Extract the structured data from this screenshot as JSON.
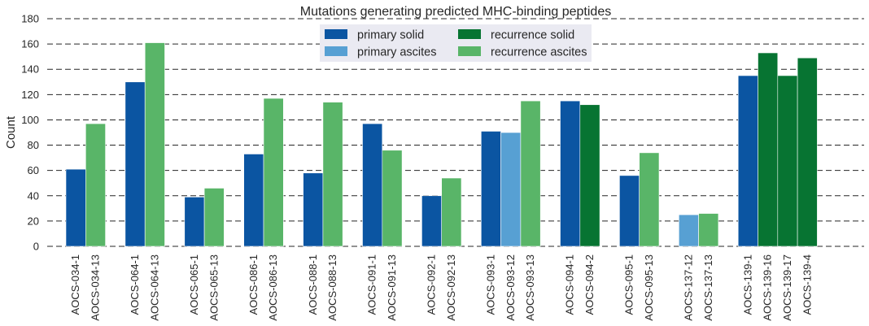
{
  "chart_data": {
    "type": "bar",
    "title": "Mutations generating predicted MHC-binding peptides",
    "xlabel": "",
    "ylabel": "Count",
    "ylim": [
      0,
      180
    ],
    "yticks": [
      0,
      20,
      40,
      60,
      80,
      100,
      120,
      140,
      160,
      180
    ],
    "grid": "horizontal dashed",
    "legend": {
      "placement": "top-center",
      "entries": [
        {
          "name": "primary solid",
          "color": "#0b55a2"
        },
        {
          "name": "primary ascites",
          "color": "#57a0d3"
        },
        {
          "name": "recurrence solid",
          "color": "#077432"
        },
        {
          "name": "recurrence ascites",
          "color": "#59b568"
        }
      ]
    },
    "groups": [
      {
        "bars": [
          {
            "label": "AOCS-034-1",
            "value": 61,
            "category": "primary solid"
          },
          {
            "label": "AOCS-034-13",
            "value": 97,
            "category": "recurrence ascites"
          }
        ]
      },
      {
        "bars": [
          {
            "label": "AOCS-064-1",
            "value": 130,
            "category": "primary solid"
          },
          {
            "label": "AOCS-064-13",
            "value": 161,
            "category": "recurrence ascites"
          }
        ]
      },
      {
        "bars": [
          {
            "label": "AOCS-065-1",
            "value": 39,
            "category": "primary solid"
          },
          {
            "label": "AOCS-065-13",
            "value": 46,
            "category": "recurrence ascites"
          }
        ]
      },
      {
        "bars": [
          {
            "label": "AOCS-086-1",
            "value": 73,
            "category": "primary solid"
          },
          {
            "label": "AOCS-086-13",
            "value": 117,
            "category": "recurrence ascites"
          }
        ]
      },
      {
        "bars": [
          {
            "label": "AOCS-088-1",
            "value": 58,
            "category": "primary solid"
          },
          {
            "label": "AOCS-088-13",
            "value": 114,
            "category": "recurrence ascites"
          }
        ]
      },
      {
        "bars": [
          {
            "label": "AOCS-091-1",
            "value": 97,
            "category": "primary solid"
          },
          {
            "label": "AOCS-091-13",
            "value": 76,
            "category": "recurrence ascites"
          }
        ]
      },
      {
        "bars": [
          {
            "label": "AOCS-092-1",
            "value": 40,
            "category": "primary solid"
          },
          {
            "label": "AOCS-092-13",
            "value": 54,
            "category": "recurrence ascites"
          }
        ]
      },
      {
        "bars": [
          {
            "label": "AOCS-093-1",
            "value": 91,
            "category": "primary solid"
          },
          {
            "label": "AOCS-093-12",
            "value": 90,
            "category": "primary ascites"
          },
          {
            "label": "AOCS-093-13",
            "value": 115,
            "category": "recurrence ascites"
          }
        ]
      },
      {
        "bars": [
          {
            "label": "AOCS-094-1",
            "value": 115,
            "category": "primary solid"
          },
          {
            "label": "AOCS-094-2",
            "value": 112,
            "category": "recurrence solid"
          }
        ]
      },
      {
        "bars": [
          {
            "label": "AOCS-095-1",
            "value": 56,
            "category": "primary solid"
          },
          {
            "label": "AOCS-095-13",
            "value": 74,
            "category": "recurrence ascites"
          }
        ]
      },
      {
        "bars": [
          {
            "label": "AOCS-137-12",
            "value": 25,
            "category": "primary ascites"
          },
          {
            "label": "AOCS-137-13",
            "value": 26,
            "category": "recurrence ascites"
          }
        ]
      },
      {
        "bars": [
          {
            "label": "AOCS-139-1",
            "value": 135,
            "category": "primary solid"
          },
          {
            "label": "AOCS-139-16",
            "value": 153,
            "category": "recurrence solid"
          },
          {
            "label": "AOCS-139-17",
            "value": 135,
            "category": "recurrence solid"
          },
          {
            "label": "AOCS-139-4",
            "value": 149,
            "category": "recurrence solid"
          }
        ]
      }
    ]
  }
}
